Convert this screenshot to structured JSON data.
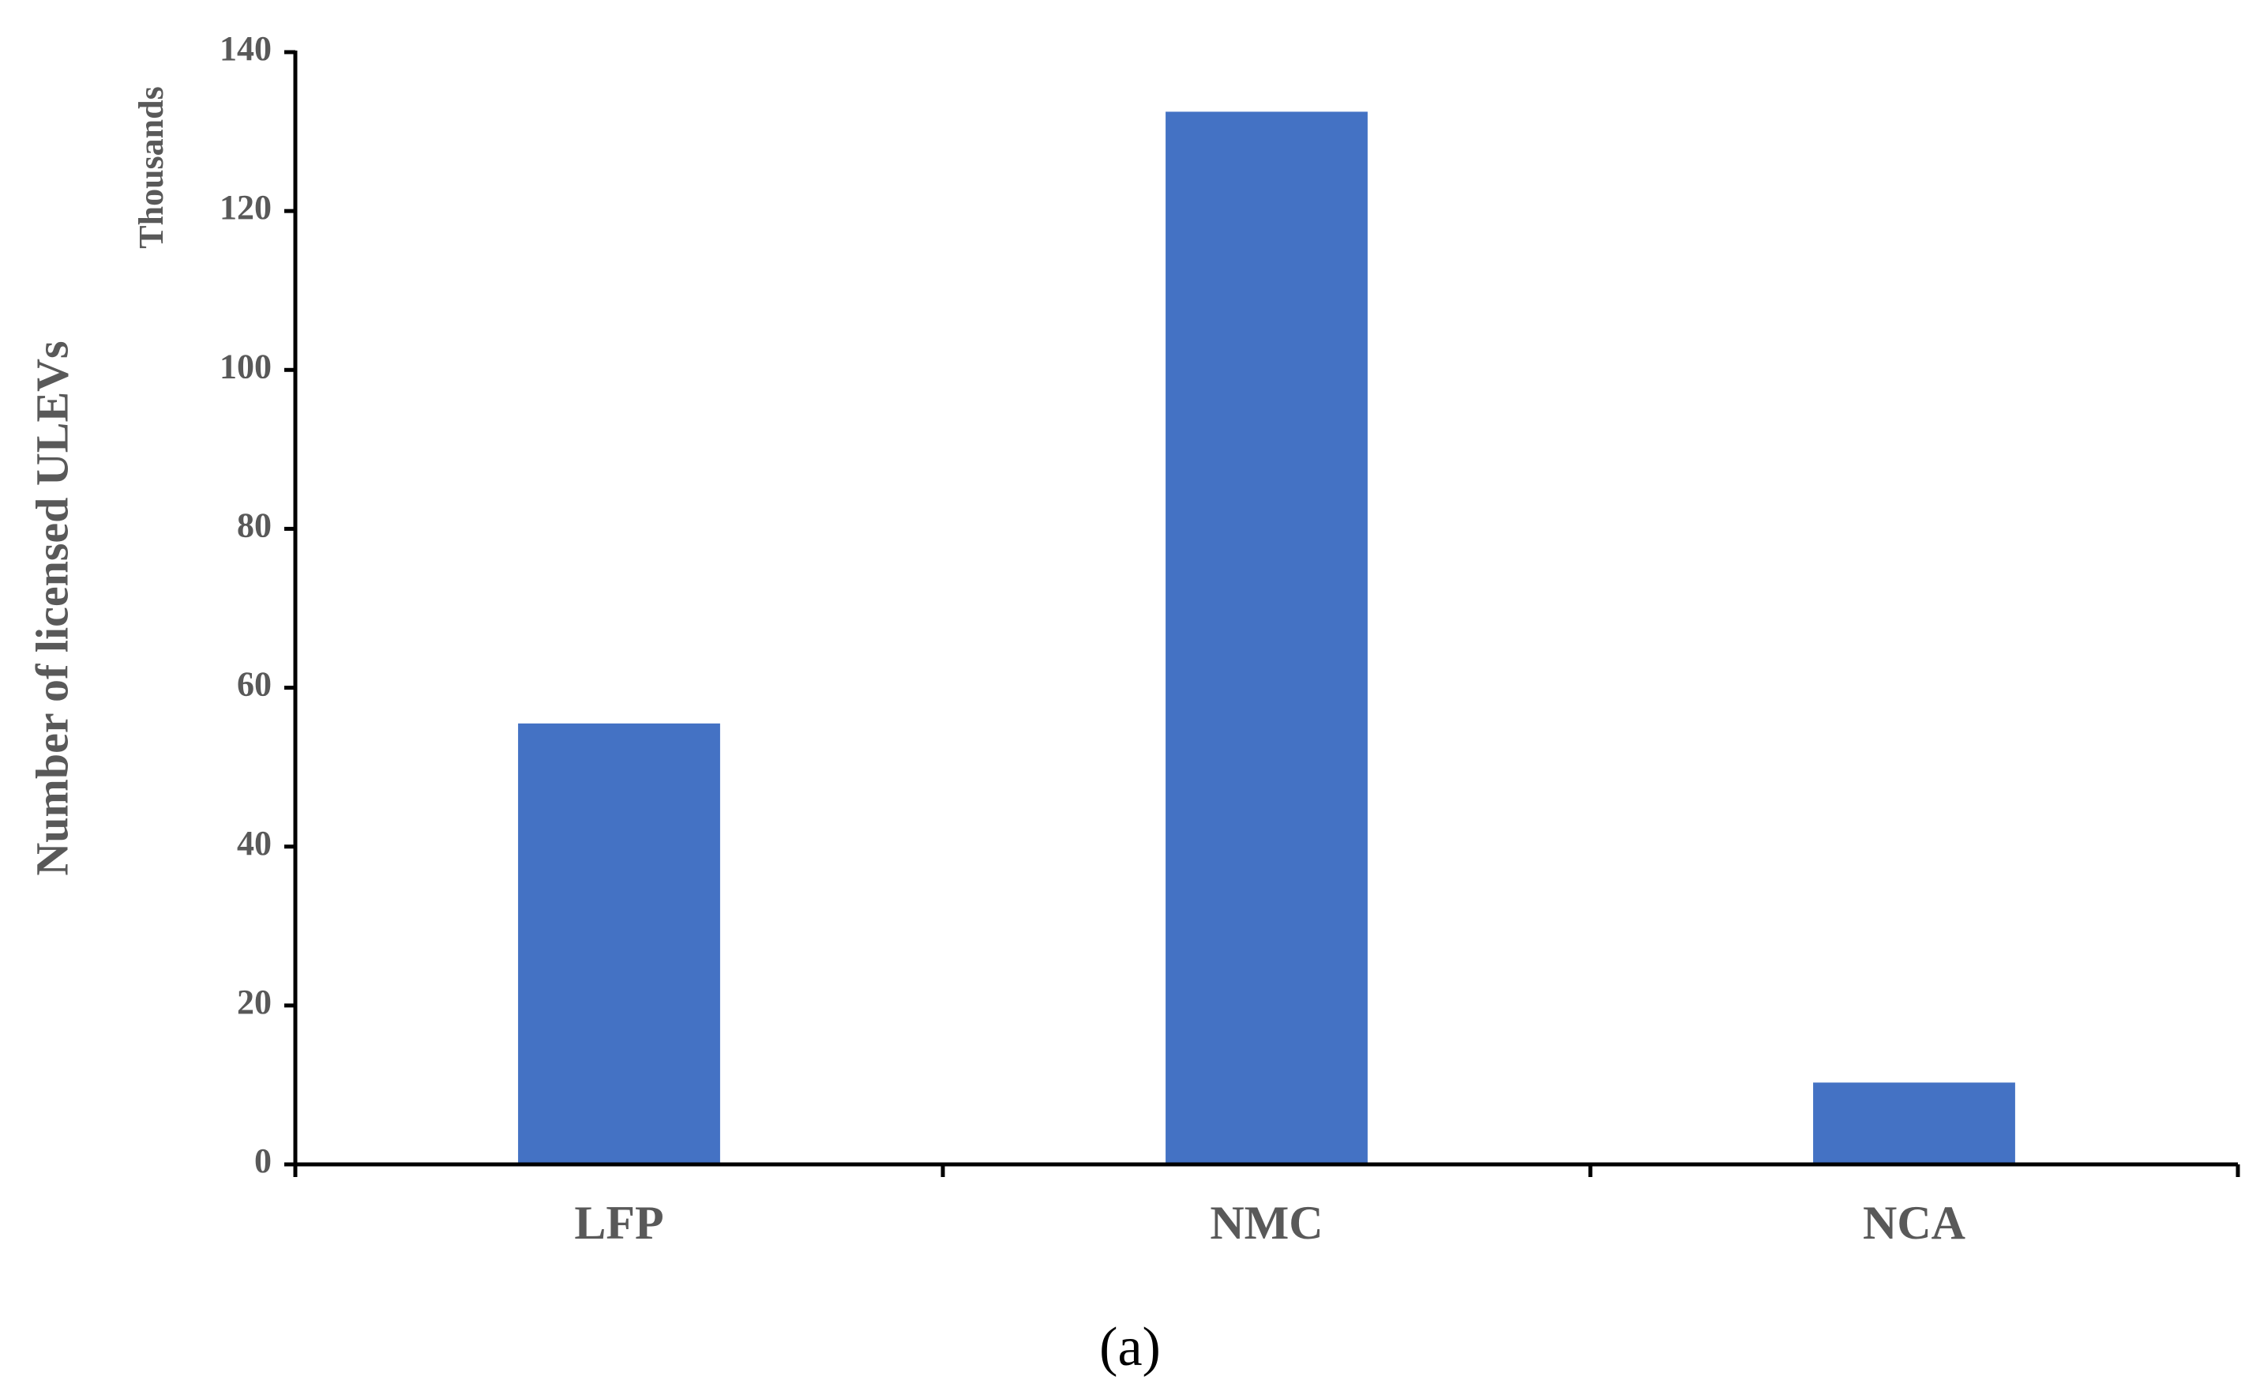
{
  "chart_data": {
    "type": "bar",
    "y_axis_label": "Number of licensed ULEVs",
    "y_unit_label": "Thousands",
    "caption": "(a)",
    "categories": [
      "LFP",
      "NMC",
      "NCA"
    ],
    "values": [
      55.5,
      132.5,
      10.3
    ],
    "color": "#4472c4",
    "ylim": [
      0,
      140
    ],
    "yticks": [
      0,
      20,
      40,
      60,
      80,
      100,
      120,
      140
    ],
    "grid": false
  }
}
